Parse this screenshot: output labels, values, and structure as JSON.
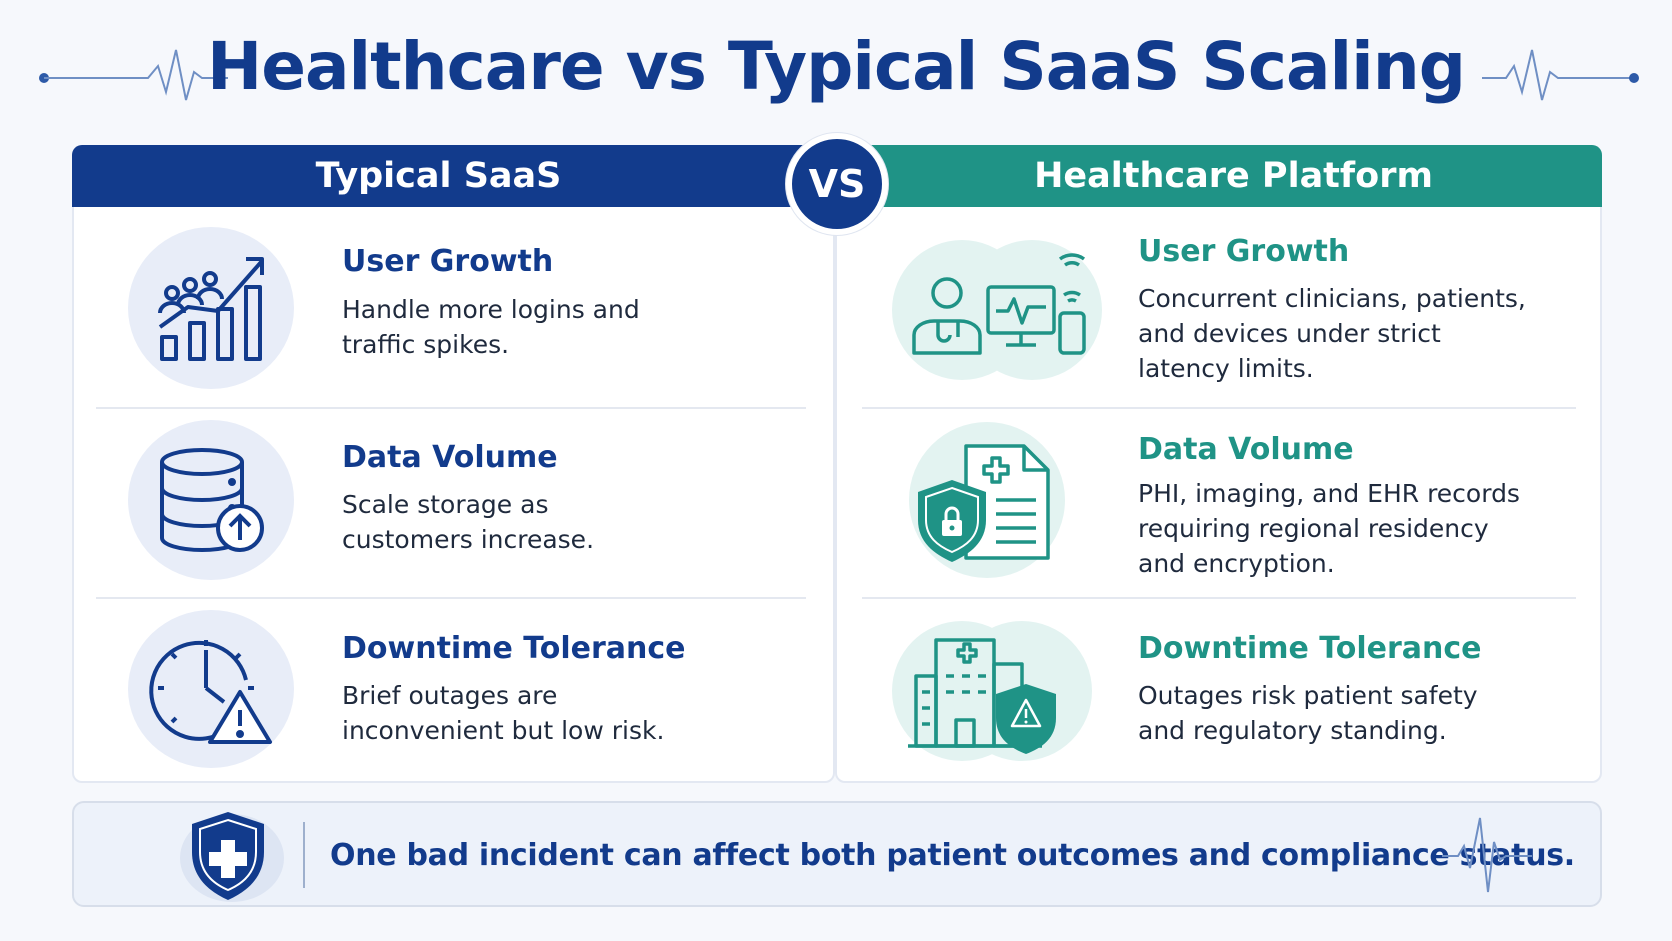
{
  "title": "Healthcare vs Typical SaaS Scaling",
  "colors": {
    "navy": "#123b8c",
    "teal": "#1f9386"
  },
  "vs_label": "VS",
  "columns": [
    {
      "header": "Typical SaaS",
      "rows": [
        {
          "icon": "growth-chart-users-icon",
          "title": "User Growth",
          "desc": [
            "Handle more logins and",
            "traffic spikes."
          ]
        },
        {
          "icon": "database-upload-icon",
          "title": "Data Volume",
          "desc": [
            "Scale storage as",
            "customers increase."
          ]
        },
        {
          "icon": "clock-warning-icon",
          "title": "Downtime Tolerance",
          "desc": [
            "Brief outages are",
            "inconvenient but low risk."
          ]
        }
      ]
    },
    {
      "header": "Healthcare Platform",
      "rows": [
        {
          "icon": "clinician-monitor-phone-icon",
          "title": "User Growth",
          "desc": [
            "Concurrent clinicians, patients,",
            "and devices under strict",
            "latency limits."
          ]
        },
        {
          "icon": "shield-medical-record-icon",
          "title": "Data Volume",
          "desc": [
            "PHI, imaging, and EHR records",
            "requiring regional residency",
            "and encryption."
          ]
        },
        {
          "icon": "hospital-warning-shield-icon",
          "title": "Downtime Tolerance",
          "desc": [
            "Outages risk patient safety",
            "and regulatory standing."
          ]
        }
      ]
    }
  ],
  "banner": {
    "icon": "medical-shield-icon",
    "text": "One bad incident can affect both patient outcomes and compliance status."
  }
}
